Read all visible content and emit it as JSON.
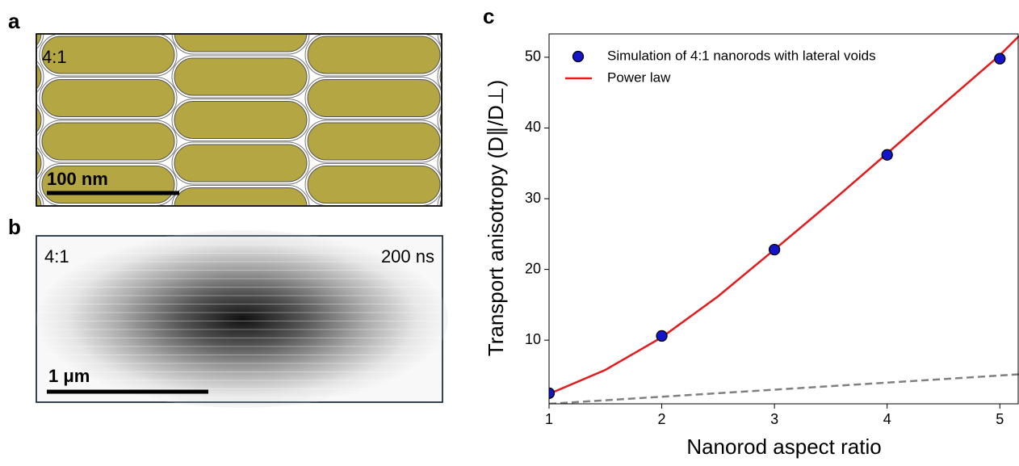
{
  "panels": [
    "a",
    "b",
    "c"
  ],
  "panel_a": {
    "ratio": "4:1",
    "scale_bar": "100 nm"
  },
  "panel_b": {
    "ratio": "4:1",
    "time": "200 ns",
    "scale_bar": "1 μm"
  },
  "chart_data": {
    "type": "line",
    "xlabel": "Nanorod aspect ratio",
    "ylabel": "Transport anisotropy (D∥/D⊥)",
    "xlim": [
      1,
      5.17
    ],
    "ylim": [
      1,
      53.3
    ],
    "xticks": [
      1,
      2,
      3,
      4,
      5
    ],
    "yticks": [
      10,
      20,
      30,
      40,
      50
    ],
    "legend": "upper-left",
    "series": [
      {
        "name": "Simulation of 4:1 nanorods with lateral voids",
        "color": "#1414c8",
        "marker": true,
        "x": [
          1,
          2,
          3,
          4,
          5
        ],
        "values": [
          2.5,
          10.6,
          22.8,
          36.2,
          49.8
        ]
      },
      {
        "name": "Power law",
        "color": "#e41a1c",
        "x": [
          1,
          1.5,
          2,
          2.5,
          3,
          3.5,
          4,
          4.5,
          5,
          5.17
        ],
        "values": [
          2.4,
          5.8,
          10.4,
          16.2,
          22.8,
          29.5,
          36.4,
          43.4,
          50.3,
          53.0
        ]
      },
      {
        "color": "#808080",
        "dash": true,
        "x": [
          1,
          5.17
        ],
        "values": [
          1,
          5.17
        ]
      }
    ]
  }
}
